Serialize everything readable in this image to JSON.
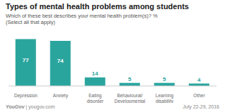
{
  "chart_data": {
    "type": "bar",
    "title": "Types of mental health problems among students",
    "subtitle": "Which of these best describes your mental health problem(s)? %\n(Select all that apply)",
    "categories": [
      "Depression",
      "Anxiety",
      "Eating\ndisorder",
      "Behavioural/\nDevelopmental",
      "Learning\ndisability",
      "Other"
    ],
    "values": [
      77,
      74,
      14,
      5,
      5,
      4
    ],
    "color": "#2aa59e",
    "ylim": [
      0,
      88
    ],
    "data_labels": true,
    "tick_labels": "x",
    "grid": false,
    "annotations": [
      "YouGov",
      " | yougov.com",
      "July 22-29, 2016"
    ]
  }
}
